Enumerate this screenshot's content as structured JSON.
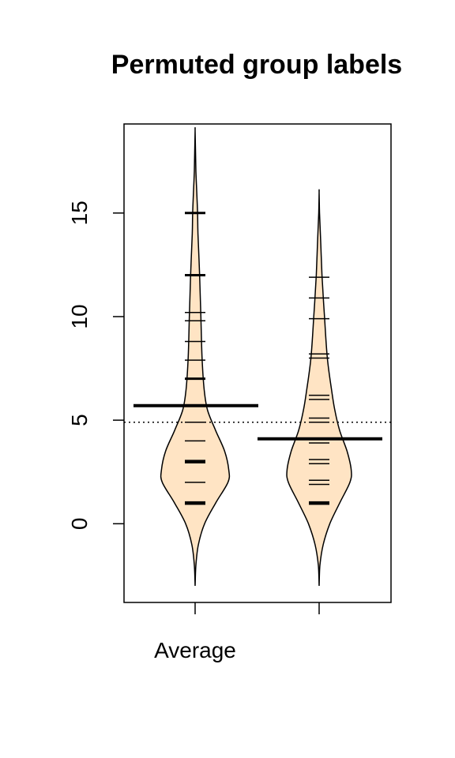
{
  "chart_data": {
    "type": "beanplot",
    "title": "Permuted group labels",
    "xlabel": "",
    "ylabel": "",
    "categories": [
      "Average",
      ""
    ],
    "y_ticks": [
      "0",
      "5",
      "10",
      "15"
    ],
    "ylim": [
      -3.8,
      19.3
    ],
    "overall_mean": 4.9,
    "grid": false,
    "fill_color": "#FFE4C4",
    "line_color": "#000000",
    "beans": [
      {
        "category": "Average",
        "mean": 5.7,
        "density": [
          [
            -3.0,
            0.0
          ],
          [
            -2.0,
            0.02
          ],
          [
            -1.0,
            0.08
          ],
          [
            0.0,
            0.23
          ],
          [
            1.0,
            0.5
          ],
          [
            2.0,
            0.8
          ],
          [
            2.6,
            0.82
          ],
          [
            3.5,
            0.72
          ],
          [
            4.5,
            0.5
          ],
          [
            5.5,
            0.3
          ],
          [
            6.5,
            0.22
          ],
          [
            8.0,
            0.17
          ],
          [
            10.0,
            0.14
          ],
          [
            12.0,
            0.11
          ],
          [
            14.0,
            0.07
          ],
          [
            15.0,
            0.06
          ],
          [
            16.0,
            0.04
          ],
          [
            17.0,
            0.02
          ],
          [
            18.0,
            0.01
          ],
          [
            19.0,
            0.0
          ]
        ],
        "observations": [
          {
            "y": 1.0,
            "count": 3
          },
          {
            "y": 2.0,
            "count": 1
          },
          {
            "y": 3.0,
            "count": 3
          },
          {
            "y": 4.0,
            "count": 1
          },
          {
            "y": 4.9,
            "count": 1
          },
          {
            "y": 7.0,
            "count": 2
          },
          {
            "y": 7.9,
            "count": 1
          },
          {
            "y": 8.8,
            "count": 1
          },
          {
            "y": 9.8,
            "count": 1
          },
          {
            "y": 10.2,
            "count": 1
          },
          {
            "y": 12.0,
            "count": 2
          },
          {
            "y": 15.0,
            "count": 2
          }
        ]
      },
      {
        "category": "",
        "mean": 4.1,
        "density": [
          [
            -3.0,
            0.0
          ],
          [
            -2.0,
            0.02
          ],
          [
            -1.0,
            0.1
          ],
          [
            0.0,
            0.26
          ],
          [
            1.0,
            0.5
          ],
          [
            2.0,
            0.75
          ],
          [
            2.6,
            0.78
          ],
          [
            3.5,
            0.68
          ],
          [
            4.5,
            0.5
          ],
          [
            5.5,
            0.38
          ],
          [
            6.5,
            0.3
          ],
          [
            8.0,
            0.2
          ],
          [
            10.0,
            0.13
          ],
          [
            12.0,
            0.07
          ],
          [
            13.5,
            0.04
          ],
          [
            15.0,
            0.01
          ],
          [
            16.0,
            0.0
          ]
        ],
        "observations": [
          {
            "y": 1.0,
            "count": 3
          },
          {
            "y": 1.9,
            "count": 1
          },
          {
            "y": 2.1,
            "count": 1
          },
          {
            "y": 2.9,
            "count": 1
          },
          {
            "y": 3.1,
            "count": 1
          },
          {
            "y": 3.9,
            "count": 1
          },
          {
            "y": 4.9,
            "count": 1
          },
          {
            "y": 5.1,
            "count": 1
          },
          {
            "y": 6.0,
            "count": 1
          },
          {
            "y": 6.2,
            "count": 1
          },
          {
            "y": 8.0,
            "count": 1
          },
          {
            "y": 8.2,
            "count": 1
          },
          {
            "y": 9.9,
            "count": 1
          },
          {
            "y": 10.9,
            "count": 1
          },
          {
            "y": 11.9,
            "count": 1
          }
        ]
      }
    ]
  }
}
